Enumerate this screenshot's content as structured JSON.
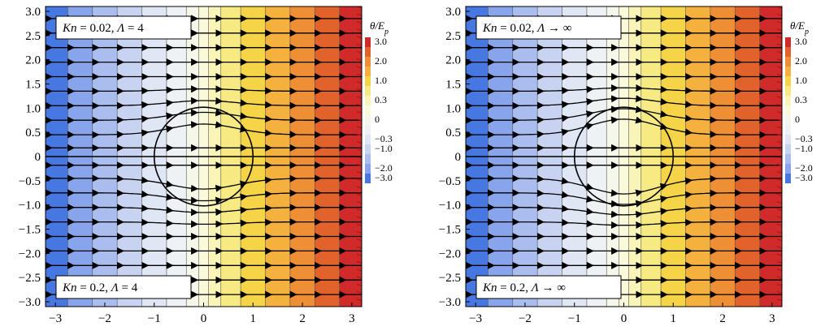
{
  "colorbar": {
    "title": "θ/E_p",
    "levels": [
      {
        "label": "3.0",
        "color": "#d12a2a"
      },
      {
        "label": "",
        "color": "#e2622b"
      },
      {
        "label": "2.0",
        "color": "#ee8f36"
      },
      {
        "label": "",
        "color": "#f4b13d"
      },
      {
        "label": "1.0",
        "color": "#f6d447"
      },
      {
        "label": "",
        "color": "#f8ea82"
      },
      {
        "label": "0.3",
        "color": "#f9f4b8"
      },
      {
        "label": "",
        "color": "#fafadb"
      },
      {
        "label": "0",
        "color": "#f4f7ea"
      },
      {
        "label": "",
        "color": "#eef2f5"
      },
      {
        "label": "−0.3",
        "color": "#dfe6f4"
      },
      {
        "label": "−1.0",
        "color": "#c7d3f1"
      },
      {
        "label": "",
        "color": "#a9bdee"
      },
      {
        "label": "−2.0",
        "color": "#88a4ea"
      },
      {
        "label": "−3.0",
        "color": "#4777e0"
      }
    ]
  },
  "chart_data": [
    {
      "type": "heatmap",
      "subtype": "contour with streamlines",
      "xlim": [
        -3.2,
        3.2
      ],
      "ylim": [
        -3.1,
        3.1
      ],
      "xticks": [
        -3,
        -2,
        -1,
        0,
        1,
        2,
        3
      ],
      "yticks": [
        3.0,
        2.5,
        2.0,
        1.5,
        1.0,
        0.5,
        0,
        -0.5,
        -1.0,
        -1.5,
        -2.0,
        -2.5,
        -3.0
      ],
      "xtick_labels": [
        "−3",
        "−2",
        "−1",
        "0",
        "1",
        "2",
        "3"
      ],
      "ytick_labels": [
        "3.0",
        "2.5",
        "2.0",
        "1.5",
        "1.0",
        "0.5",
        "0",
        "−0.5",
        "−1.0",
        "−1.5",
        "−2.0",
        "−2.5",
        "−3.0"
      ],
      "upper_label": {
        "kn": "0.02",
        "lambda": "4"
      },
      "lower_label": {
        "kn": "0.2",
        "lambda": "4"
      },
      "circle_radius": 1.0,
      "contour_x": [
        -2.75,
        -2.25,
        -1.75,
        -1.25,
        -0.75,
        -0.35,
        -0.1,
        0.1,
        0.35,
        0.75,
        1.25,
        1.75,
        2.25,
        2.75
      ],
      "streamline_y": [
        2.85,
        2.55,
        2.25,
        1.95,
        1.65,
        1.35,
        1.05,
        0.75,
        0.45,
        0.18,
        -0.18,
        -0.45,
        -0.75,
        -1.05,
        -1.35,
        -1.65,
        -1.95,
        -2.25,
        -2.55,
        -2.85
      ]
    },
    {
      "type": "heatmap",
      "subtype": "contour with streamlines",
      "xlim": [
        -3.2,
        3.2
      ],
      "ylim": [
        -3.1,
        3.1
      ],
      "xticks": [
        -3,
        -2,
        -1,
        0,
        1,
        2,
        3
      ],
      "yticks": [
        3.0,
        2.5,
        2.0,
        1.5,
        1.0,
        0.5,
        0,
        -0.5,
        -1.0,
        -1.5,
        -2.0,
        -2.5,
        -3.0
      ],
      "xtick_labels": [
        "−3",
        "−2",
        "−1",
        "0",
        "1",
        "2",
        "3"
      ],
      "ytick_labels": [
        "3.0",
        "2.5",
        "2.0",
        "1.5",
        "1.0",
        "0.5",
        "0",
        "−0.5",
        "−1.0",
        "−1.5",
        "−2.0",
        "−2.5",
        "−3.0"
      ],
      "upper_label": {
        "kn": "0.02",
        "lambda": "∞"
      },
      "lower_label": {
        "kn": "0.2",
        "lambda": "∞"
      },
      "circle_radius": 1.0,
      "contour_x": [
        -2.75,
        -2.25,
        -1.75,
        -1.25,
        -0.75,
        -0.35,
        -0.1,
        0.1,
        0.35,
        0.75,
        1.25,
        1.75,
        2.25,
        2.75
      ],
      "streamline_y": [
        2.85,
        2.55,
        2.25,
        1.95,
        1.65,
        1.35,
        1.05,
        0.75,
        0.45,
        0.18,
        -0.18,
        -0.45,
        -0.75,
        -1.05,
        -1.35,
        -1.65,
        -1.95,
        -2.25,
        -2.55,
        -2.85
      ]
    }
  ]
}
